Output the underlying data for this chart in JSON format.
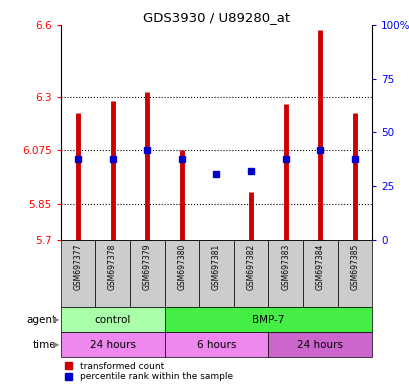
{
  "title": "GDS3930 / U89280_at",
  "samples": [
    "GSM697377",
    "GSM697378",
    "GSM697379",
    "GSM697380",
    "GSM697381",
    "GSM697382",
    "GSM697383",
    "GSM697384",
    "GSM697385"
  ],
  "red_values": [
    6.23,
    6.28,
    6.32,
    6.075,
    5.702,
    5.9,
    6.27,
    6.58,
    6.23
  ],
  "blue_values": [
    6.04,
    6.04,
    6.075,
    6.04,
    5.975,
    5.99,
    6.04,
    6.075,
    6.04
  ],
  "ylim_left": [
    5.7,
    6.6
  ],
  "ylim_right": [
    0,
    100
  ],
  "yticks_left": [
    5.7,
    5.85,
    6.075,
    6.3,
    6.6
  ],
  "yticks_right": [
    0,
    25,
    50,
    75,
    100
  ],
  "ytick_labels_left": [
    "5.7",
    "5.85",
    "6.075",
    "6.3",
    "6.6"
  ],
  "ytick_labels_right": [
    "0",
    "25",
    "50",
    "75",
    "100%"
  ],
  "agent_labels": [
    {
      "label": "control",
      "start": 0,
      "end": 3,
      "color": "#AAFFAA"
    },
    {
      "label": "BMP-7",
      "start": 3,
      "end": 9,
      "color": "#44EE44"
    }
  ],
  "time_labels": [
    {
      "label": "24 hours",
      "start": 0,
      "end": 3,
      "color": "#EE88EE"
    },
    {
      "label": "6 hours",
      "start": 3,
      "end": 6,
      "color": "#EE88EE"
    },
    {
      "label": "24 hours",
      "start": 6,
      "end": 9,
      "color": "#CC66CC"
    }
  ],
  "bar_bottom": 5.7,
  "red_color": "#CC0000",
  "blue_color": "#0000CC",
  "sample_bg": "#CCCCCC",
  "legend_red": "transformed count",
  "legend_blue": "percentile rank within the sample"
}
